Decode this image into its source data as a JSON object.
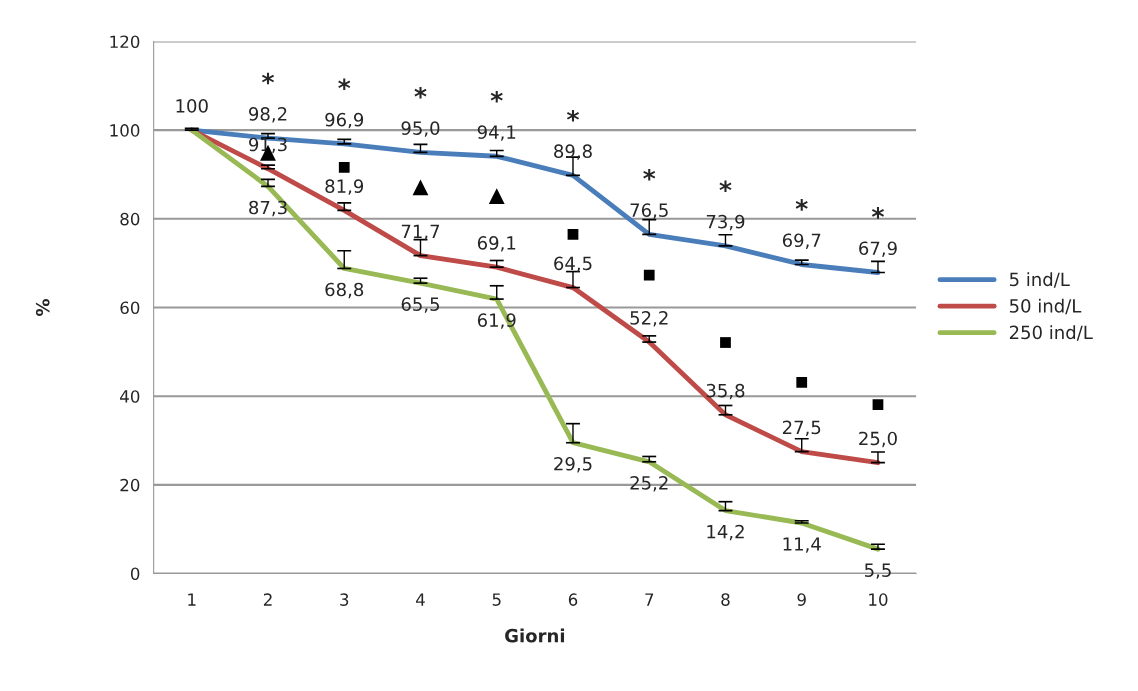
{
  "chart_data": {
    "type": "line",
    "xlabel": "Giorni",
    "ylabel": "%",
    "categories": [
      "1",
      "2",
      "3",
      "4",
      "5",
      "6",
      "7",
      "8",
      "9",
      "10"
    ],
    "ylim": [
      0,
      120
    ],
    "yticks": [
      0,
      20,
      40,
      60,
      80,
      100,
      120
    ],
    "grid": "y",
    "legend": "right",
    "series": [
      {
        "name": "5 ind/L",
        "color": "#4a7ebb",
        "values": [
          100,
          98.2,
          96.9,
          95.0,
          94.1,
          89.8,
          76.5,
          73.9,
          69.7,
          67.9
        ],
        "value_labels": [
          "100",
          "98,2",
          "96,9",
          "95,0",
          "94,1",
          "89,8",
          "76,5",
          "73,9",
          "69,7",
          "67,9"
        ],
        "errors": [
          [
            100,
            100.4
          ],
          [
            98.2,
            99.2
          ],
          [
            96.9,
            97.9
          ],
          [
            95.0,
            96.8
          ],
          [
            94.1,
            95.4
          ],
          [
            89.8,
            93.9
          ],
          [
            76.5,
            79.8
          ],
          [
            73.9,
            76.4
          ],
          [
            69.7,
            70.7
          ],
          [
            67.9,
            70.4
          ]
        ]
      },
      {
        "name": "50 ind/L",
        "color": "#be4b48",
        "values": [
          100,
          91.3,
          81.9,
          71.7,
          69.1,
          64.5,
          52.2,
          35.8,
          27.5,
          25.0
        ],
        "value_labels": [
          null,
          "91,3",
          "81,9",
          "71,7",
          "69,1",
          "64,5",
          "52,2",
          "35,8",
          "27,5",
          "25,0"
        ],
        "errors": [
          null,
          [
            91.3,
            92.1
          ],
          [
            81.9,
            83.6
          ],
          [
            71.7,
            75.3
          ],
          [
            69.1,
            70.6
          ],
          [
            64.5,
            68.1
          ],
          [
            52.2,
            53.6
          ],
          [
            35.8,
            37.9
          ],
          [
            27.5,
            30.4
          ],
          [
            25.0,
            27.4
          ]
        ]
      },
      {
        "name": "250 ind/L",
        "color": "#98b954",
        "values": [
          100,
          87.3,
          68.8,
          65.5,
          61.9,
          29.5,
          25.2,
          14.2,
          11.4,
          5.5
        ],
        "value_labels": [
          null,
          "87,3",
          "68,8",
          "65,5",
          "61,9",
          "29,5",
          "25,2",
          "14,2",
          "11,4",
          "5,5"
        ],
        "errors": [
          null,
          [
            87.3,
            88.9
          ],
          [
            68.8,
            72.8
          ],
          [
            65.5,
            66.6
          ],
          [
            61.9,
            64.9
          ],
          [
            29.5,
            33.8
          ],
          [
            25.2,
            26.4
          ],
          [
            14.2,
            16.2
          ],
          [
            11.4,
            11.9
          ],
          [
            5.5,
            6.6
          ]
        ]
      },
      {
        "type": "scatter",
        "marker": "triangle",
        "color": "#000000",
        "x": [
          "2",
          "4",
          "5"
        ],
        "values": [
          94.9,
          87.1,
          85.1
        ]
      },
      {
        "type": "scatter",
        "marker": "square",
        "color": "#000000",
        "x": [
          "3",
          "6",
          "7",
          "8",
          "9",
          "10"
        ],
        "values": [
          91.6,
          76.5,
          67.3,
          52.1,
          43.1,
          38.1
        ]
      }
    ],
    "annotations": [
      "*",
      "*",
      "*",
      "*",
      "*",
      "*",
      "*",
      "*",
      "*"
    ]
  }
}
